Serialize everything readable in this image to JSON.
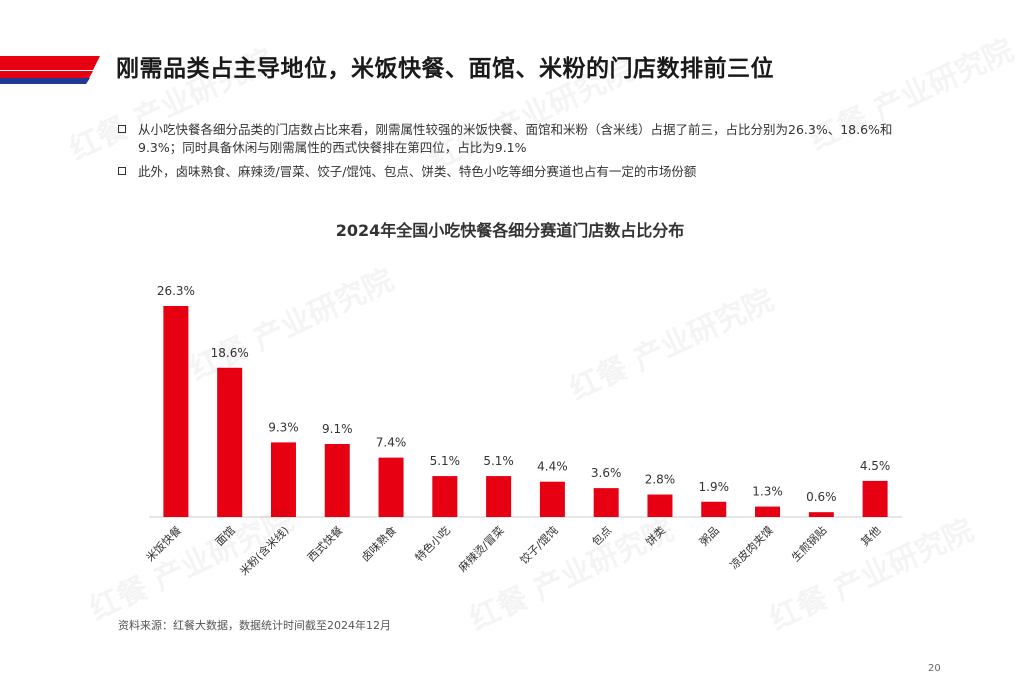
{
  "page": {
    "title": "刚需品类占主导地位，米饭快餐、面馆、米粉的门店数排前三位",
    "bullets": [
      "从小吃快餐各细分品类的门店数占比来看，刚需属性较强的米饭快餐、面馆和米粉（含米线）占据了前三，占比分别为26.3%、18.6%和9.3%；同时具备休闲与刚需属性的西式快餐排在第四位，占比为9.1%",
      "此外，卤味熟食、麻辣烫/冒菜、饺子/馄饨、包点、饼类、特色小吃等细分赛道也占有一定的市场份额"
    ],
    "source": "资料来源：红餐大数据，数据统计时间截至2024年12月",
    "page_number": "20",
    "watermark": "红餐 产业研究院"
  },
  "colors": {
    "bar": "#e60012",
    "header_red": "#e60012",
    "header_blue": "#1f3a93",
    "text": "#333333"
  },
  "chart_data": {
    "type": "bar",
    "title": "2024年全国小吃快餐各细分赛道门店数占比分布",
    "categories": [
      "米饭快餐",
      "面馆",
      "米粉(含米线)",
      "西式快餐",
      "卤味熟食",
      "特色小吃",
      "麻辣烫/冒菜",
      "饺子/馄饨",
      "包点",
      "饼类",
      "粥品",
      "凉皮肉夹馍",
      "生煎锅贴",
      "其他"
    ],
    "values": [
      26.3,
      18.6,
      9.3,
      9.1,
      7.4,
      5.1,
      5.1,
      4.4,
      3.6,
      2.8,
      1.9,
      1.3,
      0.6,
      4.5
    ],
    "value_labels": [
      "26.3%",
      "18.6%",
      "9.3%",
      "9.1%",
      "7.4%",
      "5.1%",
      "5.1%",
      "4.4%",
      "3.6%",
      "2.8%",
      "1.9%",
      "1.3%",
      "0.6%",
      "4.5%"
    ],
    "unit": "%",
    "ylim": [
      0,
      30
    ],
    "grid": false,
    "legend": "none"
  }
}
